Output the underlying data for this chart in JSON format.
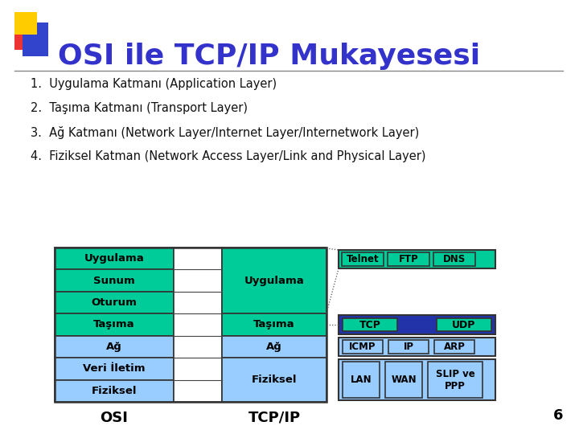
{
  "title": "OSI ile TCP/IP Mukayesesi",
  "title_color": "#3333cc",
  "bg_color": "#ffffff",
  "bullet_items": [
    "1.  Uygulama Katmanı (Application Layer)",
    "2.  Taşıma Katmanı (Transport Layer)",
    "3.  Ağ Katmanı (Network Layer/Internet Layer/Internetwork Layer)",
    "4.  Fiziksel Katman (Network Access Layer/Link and Physical Layer)"
  ],
  "osi_layers": [
    "Uygulama",
    "Sunum",
    "Oturum",
    "Taşıma",
    "Ağ",
    "Veri İletim",
    "Fiziksel"
  ],
  "osi_colors": [
    "#00cc99",
    "#00cc99",
    "#00cc99",
    "#00cc99",
    "#99ccff",
    "#99ccff",
    "#99ccff"
  ],
  "tcpip_spans": [
    {
      "name": "Uygulama",
      "color": "#00cc99",
      "rows": 3
    },
    {
      "name": "Taşıma",
      "color": "#00cc99",
      "rows": 1
    },
    {
      "name": "Ağ",
      "color": "#99ccff",
      "rows": 1
    },
    {
      "name": "Fiziksel",
      "color": "#99ccff",
      "rows": 2
    }
  ],
  "protocols_app": [
    "Telnet",
    "FTP",
    "DNS"
  ],
  "protocols_transport": [
    "TCP",
    "UDP"
  ],
  "protocols_network": [
    "ICMP",
    "IP",
    "ARP"
  ],
  "protocols_link": [
    "LAN",
    "WAN",
    "SLIP ve\nPPP"
  ],
  "page_number": "6",
  "deco_yellow": "#ffcc00",
  "deco_red": "#ee3333",
  "deco_blue": "#3344cc",
  "teal": "#00cc99",
  "light_blue": "#99ccff",
  "dark_blue": "#2233aa",
  "title_line_color": "#888888",
  "OSI_label": "OSI",
  "TCPIP_label": "TCP/IP"
}
